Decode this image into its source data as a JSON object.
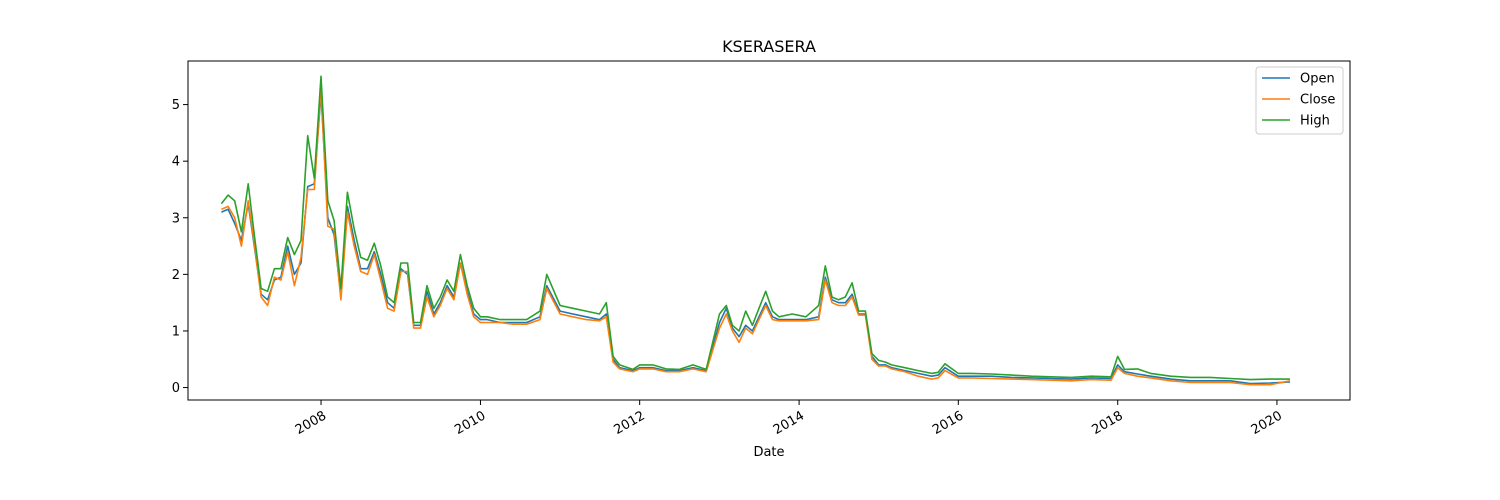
{
  "chart_data": {
    "type": "line",
    "title": "KSERASERA",
    "xlabel": "Date",
    "ylabel": "",
    "xlim": [
      "2006-05-01",
      "2020-12-01"
    ],
    "ylim": [
      -0.22,
      5.77
    ],
    "x_ticks": [
      "2008",
      "2010",
      "2012",
      "2014",
      "2016",
      "2018",
      "2020"
    ],
    "y_ticks": [
      0,
      1,
      2,
      3,
      4,
      5
    ],
    "grid": false,
    "legend_position": "top-right",
    "x": [
      "2006-10-01",
      "2006-11-01",
      "2006-12-01",
      "2007-01-01",
      "2007-02-01",
      "2007-03-01",
      "2007-04-01",
      "2007-05-01",
      "2007-06-01",
      "2007-07-01",
      "2007-08-01",
      "2007-09-01",
      "2007-10-01",
      "2007-11-01",
      "2007-12-01",
      "2008-01-01",
      "2008-02-01",
      "2008-03-01",
      "2008-04-01",
      "2008-05-01",
      "2008-06-01",
      "2008-07-01",
      "2008-08-01",
      "2008-09-01",
      "2008-10-01",
      "2008-11-01",
      "2008-12-01",
      "2009-01-01",
      "2009-02-01",
      "2009-03-01",
      "2009-04-01",
      "2009-05-01",
      "2009-06-01",
      "2009-07-01",
      "2009-08-01",
      "2009-09-01",
      "2009-10-01",
      "2009-11-01",
      "2009-12-01",
      "2010-01-01",
      "2010-02-01",
      "2010-04-01",
      "2010-06-01",
      "2010-08-01",
      "2010-10-01",
      "2010-11-01",
      "2011-01-01",
      "2011-03-01",
      "2011-05-01",
      "2011-07-01",
      "2011-08-01",
      "2011-09-01",
      "2011-10-01",
      "2011-12-01",
      "2012-01-01",
      "2012-03-01",
      "2012-05-01",
      "2012-07-01",
      "2012-09-01",
      "2012-11-01",
      "2013-01-01",
      "2013-02-01",
      "2013-03-01",
      "2013-04-01",
      "2013-05-01",
      "2013-06-01",
      "2013-07-01",
      "2013-08-01",
      "2013-09-01",
      "2013-10-01",
      "2013-12-01",
      "2014-02-01",
      "2014-04-01",
      "2014-05-01",
      "2014-06-01",
      "2014-07-01",
      "2014-08-01",
      "2014-09-01",
      "2014-10-01",
      "2014-11-01",
      "2014-12-01",
      "2015-01-01",
      "2015-02-01",
      "2015-03-01",
      "2015-05-01",
      "2015-07-01",
      "2015-09-01",
      "2015-10-01",
      "2015-11-01",
      "2016-01-01",
      "2016-03-01",
      "2016-06-01",
      "2016-09-01",
      "2016-12-01",
      "2017-03-01",
      "2017-06-01",
      "2017-09-01",
      "2017-12-01",
      "2018-01-01",
      "2018-02-01",
      "2018-04-01",
      "2018-06-01",
      "2018-09-01",
      "2018-12-01",
      "2019-03-01",
      "2019-06-01",
      "2019-09-01",
      "2019-12-01",
      "2020-03-01"
    ],
    "series": [
      {
        "name": "Open",
        "color": "#1f77b4",
        "values": [
          3.1,
          3.15,
          2.9,
          2.6,
          3.25,
          2.5,
          1.65,
          1.55,
          1.9,
          1.95,
          2.5,
          2.0,
          2.2,
          3.55,
          3.6,
          5.2,
          3.0,
          2.7,
          1.6,
          3.2,
          2.6,
          2.1,
          2.1,
          2.4,
          2.0,
          1.5,
          1.4,
          2.1,
          2.0,
          1.1,
          1.1,
          1.7,
          1.3,
          1.5,
          1.8,
          1.6,
          2.2,
          1.7,
          1.3,
          1.2,
          1.2,
          1.15,
          1.15,
          1.15,
          1.25,
          1.8,
          1.35,
          1.3,
          1.25,
          1.2,
          1.3,
          0.5,
          0.35,
          0.3,
          0.35,
          0.35,
          0.3,
          0.3,
          0.35,
          0.3,
          1.15,
          1.4,
          1.05,
          0.9,
          1.1,
          1.0,
          1.25,
          1.5,
          1.25,
          1.2,
          1.2,
          1.2,
          1.25,
          1.95,
          1.55,
          1.5,
          1.5,
          1.65,
          1.3,
          1.3,
          0.55,
          0.4,
          0.4,
          0.35,
          0.3,
          0.25,
          0.2,
          0.22,
          0.35,
          0.2,
          0.2,
          0.2,
          0.18,
          0.17,
          0.16,
          0.15,
          0.17,
          0.16,
          0.4,
          0.28,
          0.24,
          0.2,
          0.15,
          0.12,
          0.12,
          0.12,
          0.07,
          0.08,
          0.1
        ]
      },
      {
        "name": "Close",
        "color": "#ff7f0e",
        "values": [
          3.15,
          3.2,
          3.0,
          2.5,
          3.3,
          2.55,
          1.6,
          1.45,
          1.95,
          1.9,
          2.4,
          1.8,
          2.3,
          3.5,
          3.5,
          5.3,
          2.85,
          2.8,
          1.55,
          3.1,
          2.5,
          2.05,
          2.0,
          2.35,
          1.9,
          1.4,
          1.35,
          2.05,
          2.05,
          1.05,
          1.05,
          1.6,
          1.25,
          1.45,
          1.75,
          1.55,
          2.2,
          1.65,
          1.25,
          1.15,
          1.15,
          1.15,
          1.12,
          1.12,
          1.2,
          1.75,
          1.3,
          1.25,
          1.2,
          1.18,
          1.25,
          0.45,
          0.33,
          0.28,
          0.33,
          0.33,
          0.28,
          0.28,
          0.33,
          0.28,
          1.05,
          1.3,
          1.0,
          0.8,
          1.05,
          0.95,
          1.2,
          1.45,
          1.2,
          1.18,
          1.18,
          1.18,
          1.2,
          1.9,
          1.5,
          1.45,
          1.45,
          1.6,
          1.28,
          1.28,
          0.5,
          0.38,
          0.38,
          0.33,
          0.28,
          0.2,
          0.15,
          0.17,
          0.3,
          0.17,
          0.17,
          0.16,
          0.15,
          0.14,
          0.13,
          0.12,
          0.14,
          0.13,
          0.35,
          0.25,
          0.2,
          0.17,
          0.12,
          0.09,
          0.09,
          0.09,
          0.05,
          0.05,
          0.12
        ]
      },
      {
        "name": "High",
        "color": "#2ca02c",
        "values": [
          3.25,
          3.4,
          3.3,
          2.75,
          3.6,
          2.7,
          1.75,
          1.7,
          2.1,
          2.1,
          2.65,
          2.35,
          2.6,
          4.45,
          3.7,
          5.5,
          3.3,
          2.95,
          1.75,
          3.45,
          2.8,
          2.3,
          2.25,
          2.55,
          2.15,
          1.6,
          1.5,
          2.2,
          2.2,
          1.15,
          1.15,
          1.8,
          1.4,
          1.6,
          1.9,
          1.7,
          2.35,
          1.8,
          1.4,
          1.25,
          1.25,
          1.2,
          1.2,
          1.2,
          1.35,
          2.0,
          1.45,
          1.4,
          1.35,
          1.3,
          1.5,
          0.55,
          0.4,
          0.32,
          0.4,
          0.4,
          0.33,
          0.32,
          0.4,
          0.32,
          1.3,
          1.45,
          1.1,
          1.0,
          1.35,
          1.1,
          1.4,
          1.7,
          1.35,
          1.25,
          1.3,
          1.25,
          1.45,
          2.15,
          1.6,
          1.55,
          1.6,
          1.85,
          1.35,
          1.35,
          0.6,
          0.48,
          0.45,
          0.4,
          0.35,
          0.3,
          0.25,
          0.27,
          0.42,
          0.25,
          0.25,
          0.24,
          0.22,
          0.2,
          0.19,
          0.18,
          0.2,
          0.19,
          0.55,
          0.32,
          0.33,
          0.25,
          0.2,
          0.18,
          0.18,
          0.16,
          0.14,
          0.15,
          0.15
        ]
      }
    ]
  }
}
